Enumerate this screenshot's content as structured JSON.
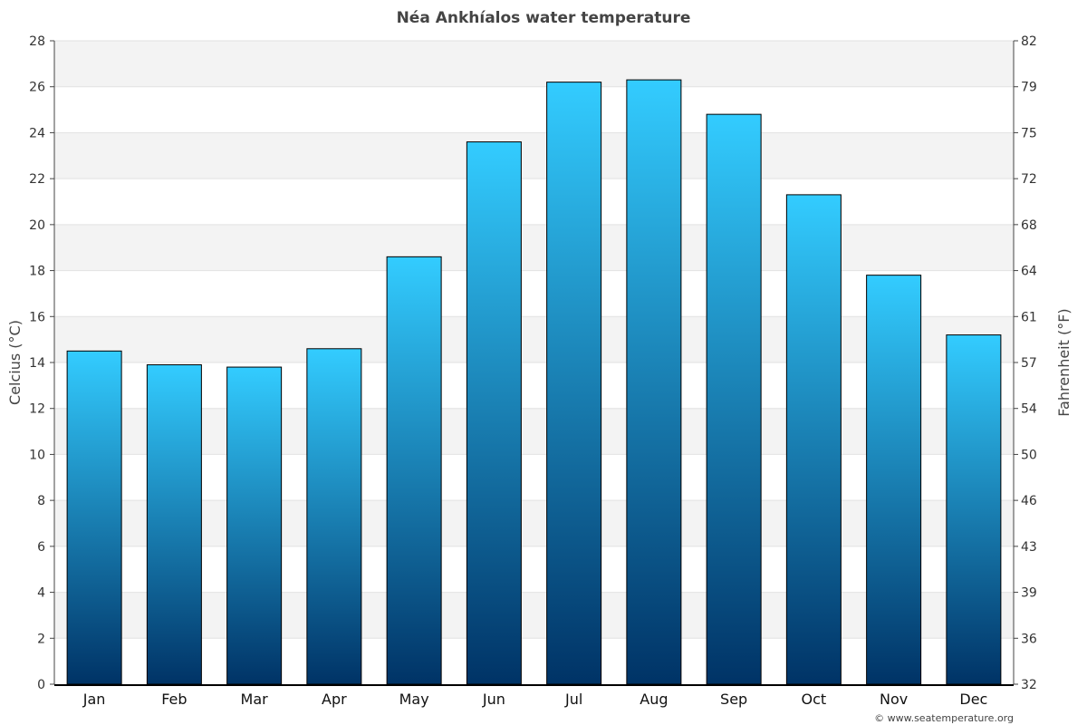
{
  "chart_data": {
    "type": "bar",
    "title": "Néa Ankhíalos water temperature",
    "ylabel": "Celcius (°C)",
    "y2label": "Fahrenheit (°F)",
    "categories": [
      "Jan",
      "Feb",
      "Mar",
      "Apr",
      "May",
      "Jun",
      "Jul",
      "Aug",
      "Sep",
      "Oct",
      "Nov",
      "Dec"
    ],
    "values": [
      14.5,
      13.9,
      13.8,
      14.6,
      18.6,
      23.6,
      26.2,
      26.3,
      24.8,
      21.3,
      17.8,
      15.2
    ],
    "ylim": [
      0,
      28
    ],
    "yticks": [
      0,
      2,
      4,
      6,
      8,
      10,
      12,
      14,
      16,
      18,
      20,
      22,
      24,
      26,
      28
    ],
    "y2ticks": [
      "32",
      "36",
      "39",
      "43",
      "46",
      "50",
      "54",
      "57",
      "61",
      "64",
      "68",
      "72",
      "75",
      "79",
      "82"
    ],
    "grid": true,
    "bar_color_top": "#33ccff",
    "bar_color_bottom": "#003366"
  },
  "footer": {
    "credit": "© www.seatemperature.org"
  }
}
